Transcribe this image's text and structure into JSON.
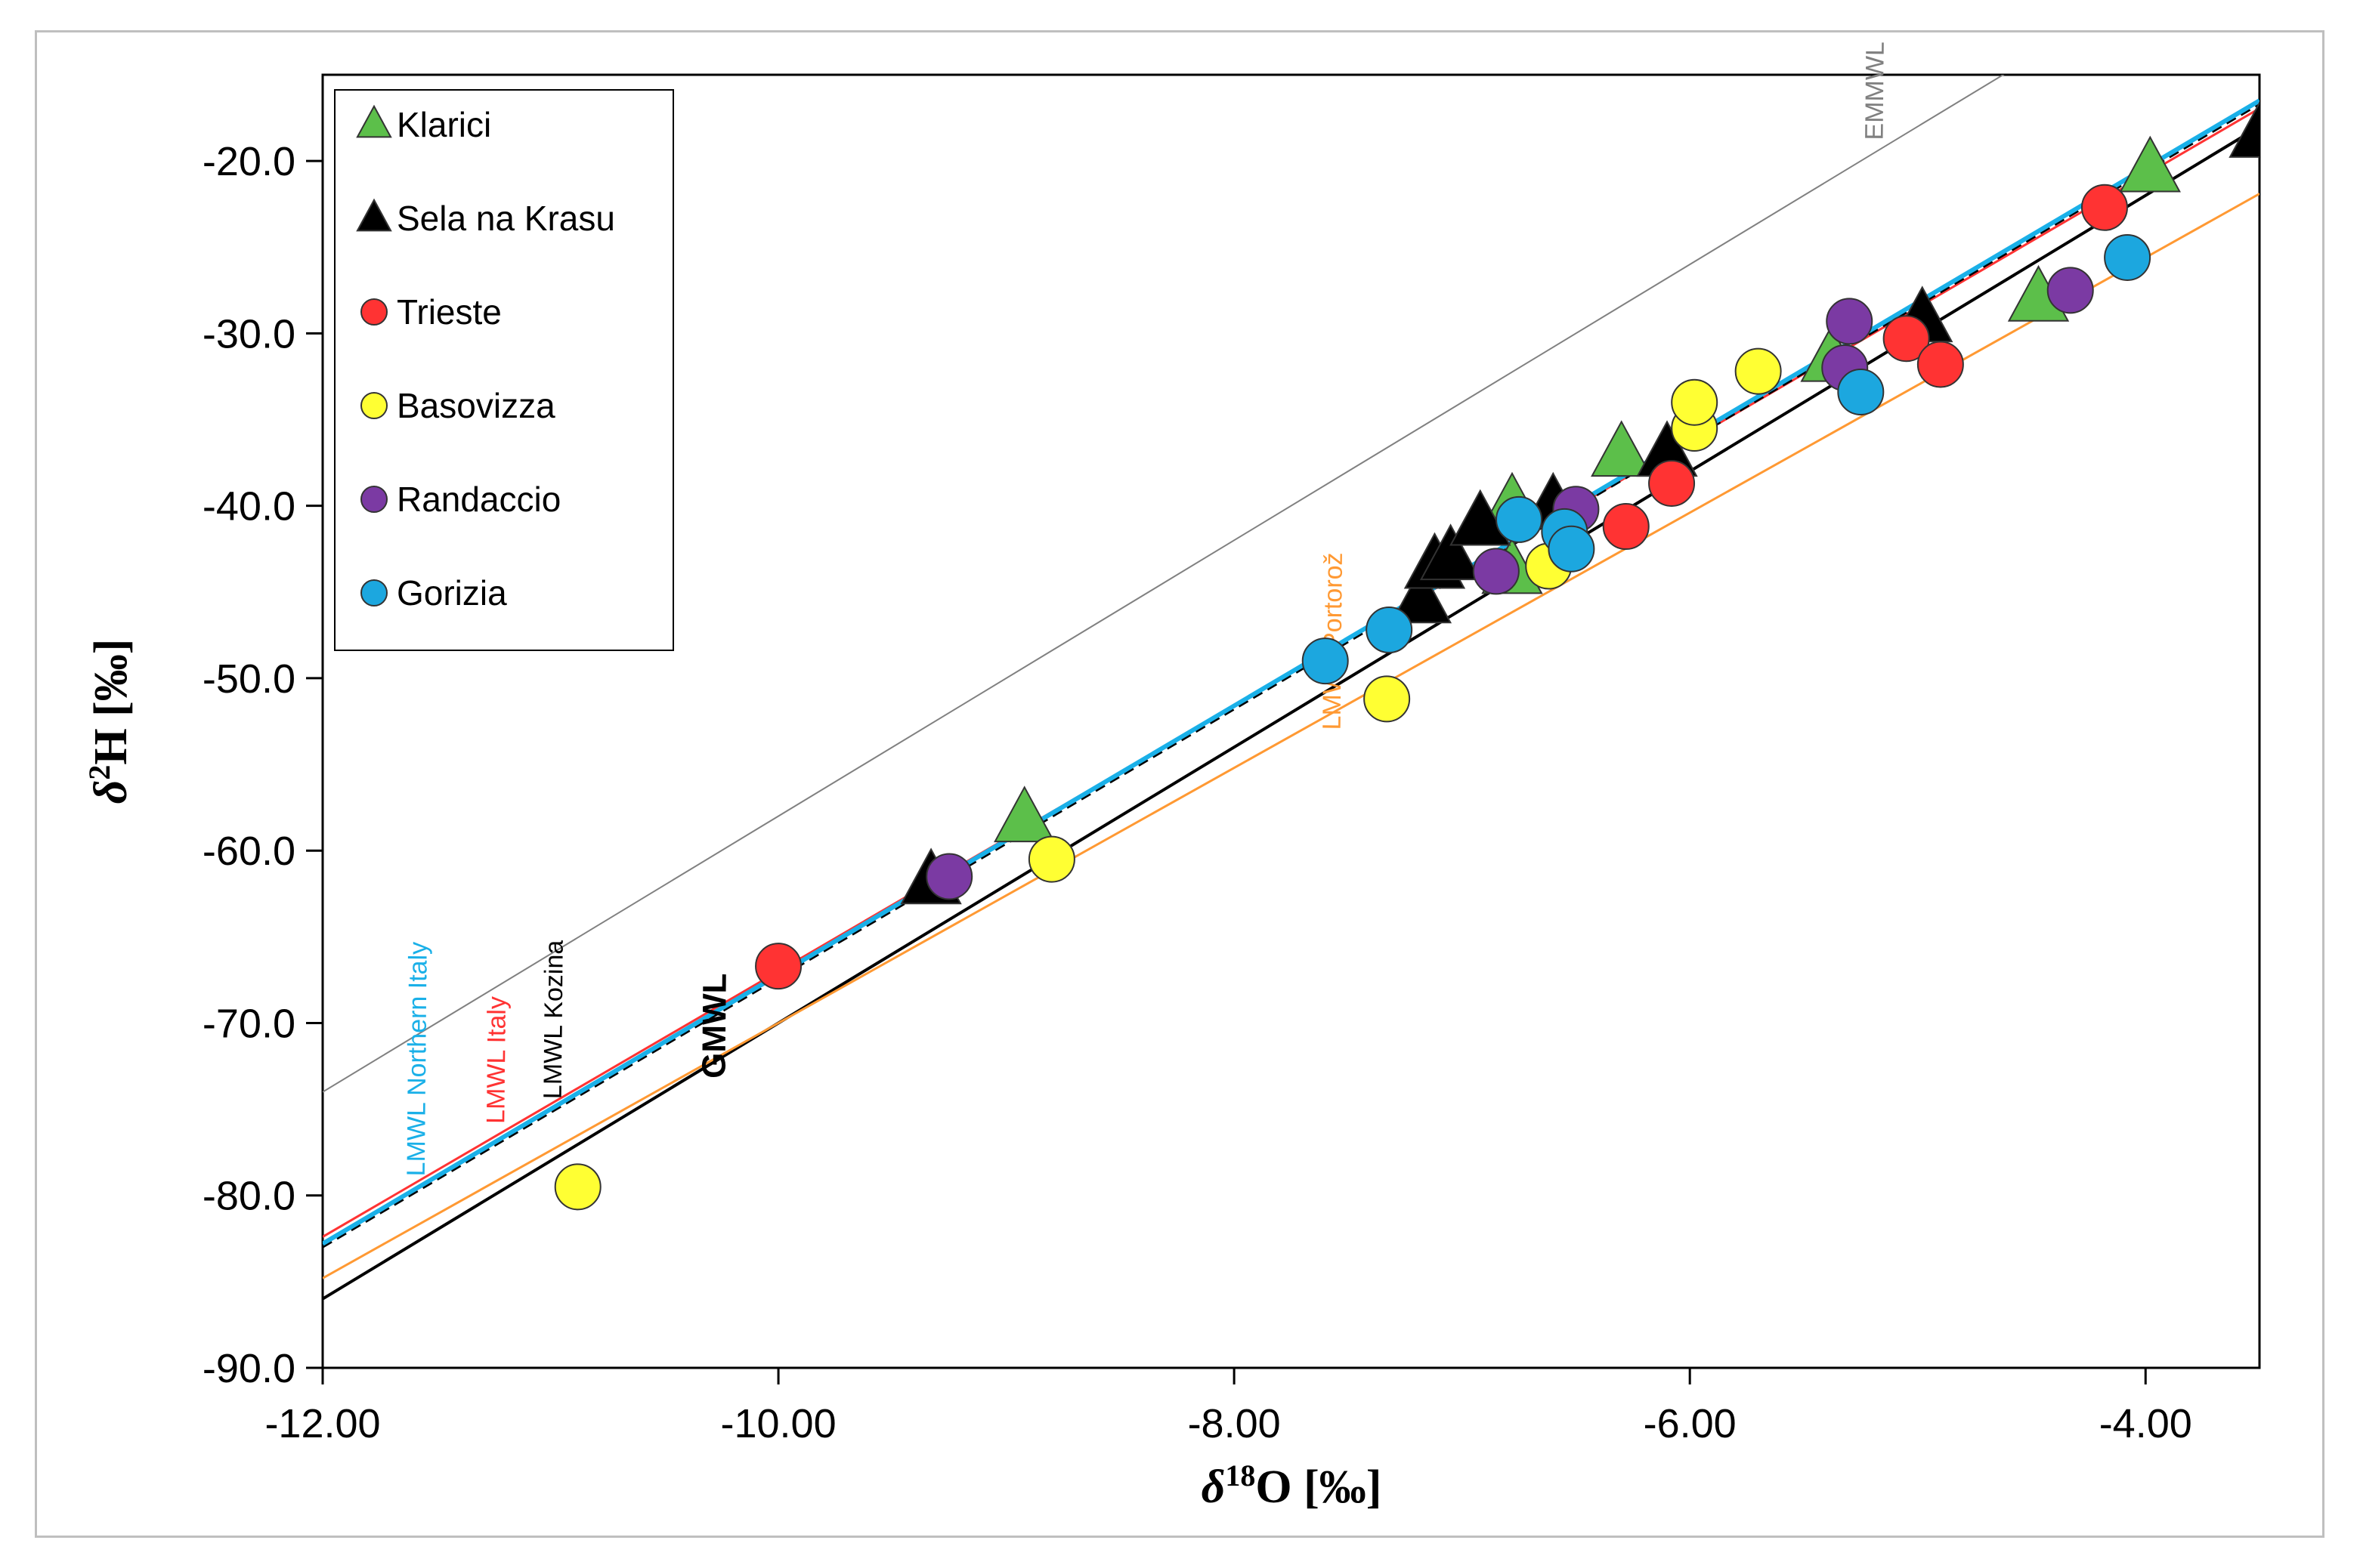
{
  "chart_data": {
    "type": "scatter",
    "title": "",
    "xlabel": {
      "prefix": "δ",
      "sup": "18",
      "suffix": "O [‰]"
    },
    "ylabel": {
      "prefix": "δ",
      "sup": "2",
      "suffix": "H [‰]"
    },
    "xlim": [
      -12.0,
      -3.5
    ],
    "ylim": [
      -90.0,
      -15.0
    ],
    "xticks": [
      -12,
      -10,
      -8,
      -6,
      -4
    ],
    "xtick_labels": [
      "-12.00",
      "-10.00",
      "-8.00",
      "-6.00",
      "-4.00"
    ],
    "yticks": [
      -20,
      -30,
      -40,
      -50,
      -60,
      -70,
      -80,
      -90
    ],
    "ytick_labels": [
      "-20.0",
      "-30.0",
      "-40.0",
      "-50.0",
      "-60.0",
      "-70.0",
      "-80.0",
      "-90.0"
    ],
    "grid": false,
    "legend_position": "top-left",
    "lines": [
      {
        "label": "EMMWL",
        "slope": 8,
        "intercept": 22,
        "color": "#808080",
        "label_at_x": -5.1,
        "style": "thin"
      },
      {
        "label": "LMWL Italy",
        "slope": 7.7,
        "intercept": 10.0,
        "color": "#ff3333",
        "label_at_x": -11.15,
        "style": "normal"
      },
      {
        "label": "LMWL Kozina",
        "slope": 7.8,
        "intercept": 10.6,
        "color": "#000000",
        "label_at_x": -10.9,
        "style": "dashed"
      },
      {
        "label": "LMWL Northern Italy",
        "slope": 7.8,
        "intercept": 10.8,
        "color": "#1ab0e8",
        "label_at_x": -11.5,
        "style": "thick"
      },
      {
        "label": "GMWL",
        "slope": 8,
        "intercept": 10,
        "color": "#000000",
        "label_at_x": -10.4,
        "style": "bold"
      },
      {
        "label": "LMWL Portorož",
        "slope": 7.4,
        "intercept": 4.0,
        "color": "#ff9933",
        "label_at_x": -7.7,
        "style": "normal"
      }
    ],
    "series": [
      {
        "name": "Klarici",
        "marker": "triangle",
        "color": "#5cbf4a",
        "points": [
          [
            -8.92,
            -58.2
          ],
          [
            -6.78,
            -40.0
          ],
          [
            -6.3,
            -37.0
          ],
          [
            -5.38,
            -31.5
          ],
          [
            -4.47,
            -28.0
          ],
          [
            -3.98,
            -20.5
          ],
          [
            -6.78,
            -43.8
          ]
        ]
      },
      {
        "name": "Sela na Krasu",
        "marker": "triangle",
        "color": "#000000",
        "points": [
          [
            -9.33,
            -61.8
          ],
          [
            -7.18,
            -45.5
          ],
          [
            -7.12,
            -43.5
          ],
          [
            -7.05,
            -43.0
          ],
          [
            -6.92,
            -41.0
          ],
          [
            -6.6,
            -40.0
          ],
          [
            -6.1,
            -37.0
          ],
          [
            -4.98,
            -29.2
          ],
          [
            -3.5,
            -18.5
          ]
        ]
      },
      {
        "name": "Trieste",
        "marker": "circle",
        "color": "#ff3333",
        "points": [
          [
            -10.0,
            -66.7
          ],
          [
            -6.28,
            -41.2
          ],
          [
            -6.08,
            -38.7
          ],
          [
            -5.05,
            -30.3
          ],
          [
            -4.9,
            -31.8
          ],
          [
            -4.18,
            -22.7
          ]
        ]
      },
      {
        "name": "Basovizza",
        "marker": "circle",
        "color": "#ffff33",
        "points": [
          [
            -10.88,
            -79.5
          ],
          [
            -8.8,
            -60.5
          ],
          [
            -7.33,
            -51.2
          ],
          [
            -6.62,
            -43.5
          ],
          [
            -5.98,
            -35.5
          ],
          [
            -5.98,
            -34.0
          ],
          [
            -5.7,
            -32.2
          ]
        ]
      },
      {
        "name": "Randaccio",
        "marker": "circle",
        "color": "#7b3aa3",
        "points": [
          [
            -9.25,
            -61.5
          ],
          [
            -6.85,
            -43.8
          ],
          [
            -6.5,
            -40.2
          ],
          [
            -5.32,
            -32.0
          ],
          [
            -5.3,
            -29.3
          ],
          [
            -4.33,
            -27.5
          ]
        ]
      },
      {
        "name": "Gorizia",
        "marker": "circle",
        "color": "#1ca7df",
        "points": [
          [
            -7.6,
            -49.0
          ],
          [
            -7.32,
            -47.2
          ],
          [
            -6.75,
            -40.8
          ],
          [
            -6.55,
            -41.5
          ],
          [
            -6.52,
            -42.5
          ],
          [
            -5.25,
            -33.4
          ],
          [
            -4.08,
            -25.6
          ]
        ]
      }
    ]
  }
}
